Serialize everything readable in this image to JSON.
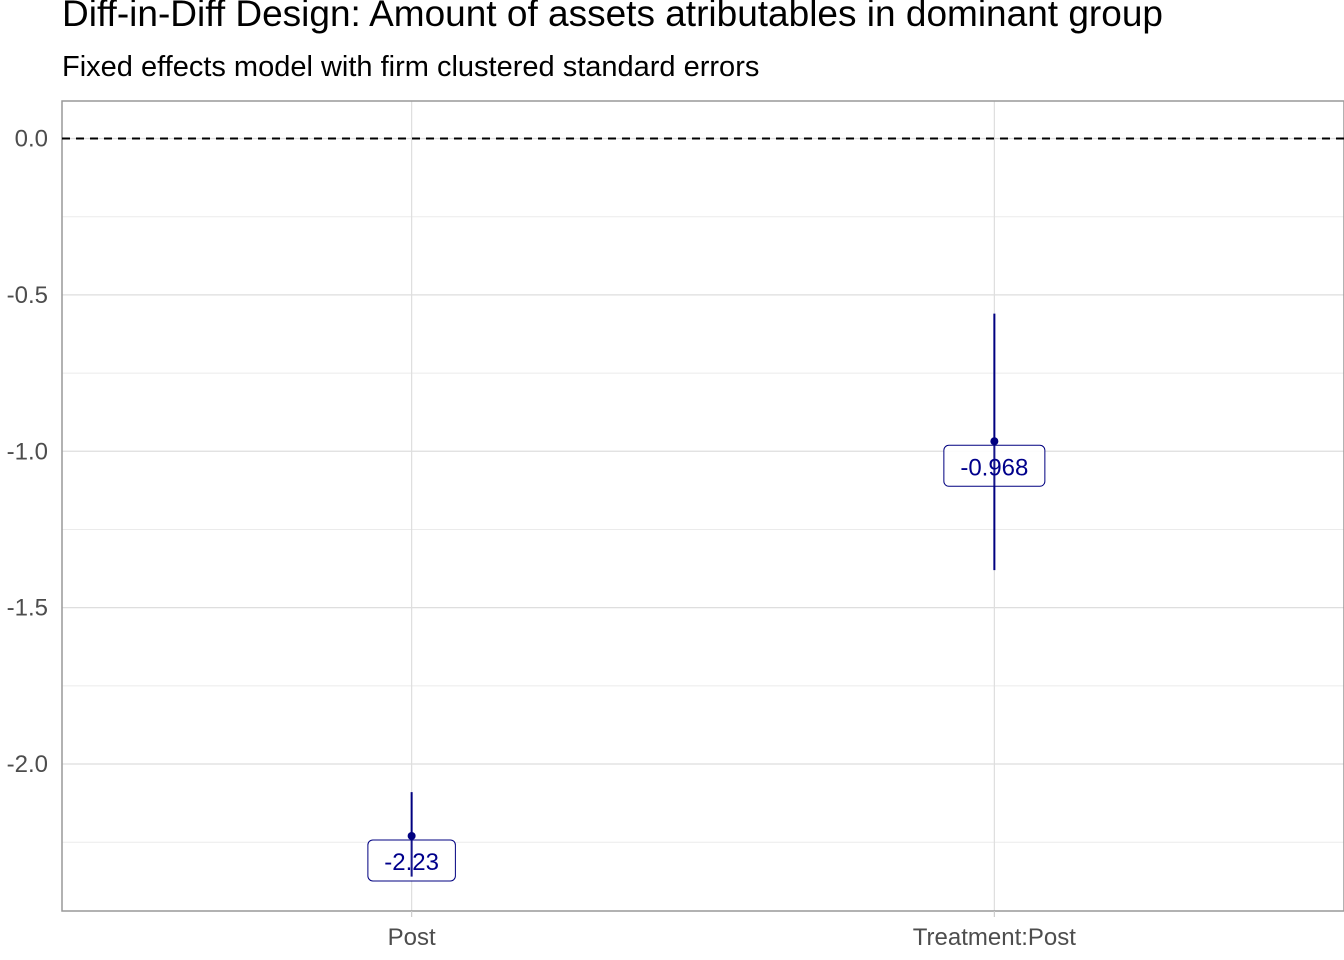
{
  "chart_data": {
    "type": "scatter",
    "title": "Diff-in-Diff Design: Amount of assets atributables in dominant group",
    "subtitle": "Fixed effects model with firm clustered standard errors",
    "xlabel": "",
    "ylabel": "",
    "categories": [
      "Post",
      "Treatment:Post"
    ],
    "points": [
      {
        "term": "Post",
        "estimate": -2.23,
        "ci_low": -2.36,
        "ci_high": -2.09,
        "label": "-2.23"
      },
      {
        "term": "Treatment:Post",
        "estimate": -0.968,
        "ci_low": -1.38,
        "ci_high": -0.56,
        "label": "-0.968"
      }
    ],
    "ylim": [
      -2.47,
      0.12
    ],
    "yticks": [
      0.0,
      -0.5,
      -1.0,
      -1.5,
      -2.0
    ],
    "ytick_labels": [
      "0.0",
      "-0.5",
      "-1.0",
      "-1.5",
      "-2.0"
    ],
    "reference_line": {
      "y": 0,
      "style": "dashed"
    },
    "grid": true,
    "legend": "none",
    "colors": {
      "point": "#000080",
      "label_text": "#00008b",
      "reference_line": "#000000",
      "grid": "#ebebeb",
      "axis": "#999999"
    }
  }
}
